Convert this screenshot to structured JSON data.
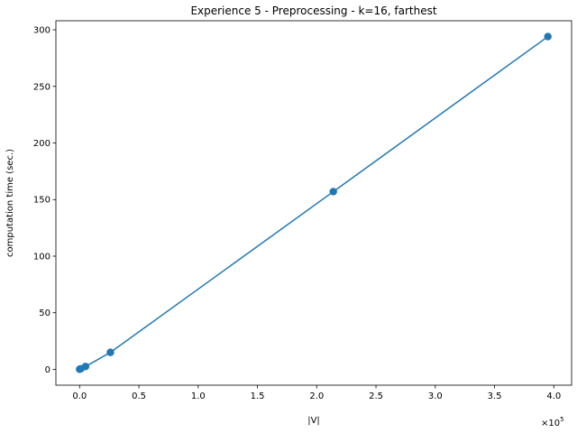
{
  "chart_data": {
    "type": "line",
    "title": "Experience 5 - Preprocessing - k=16, farthest",
    "xlabel": "|V|",
    "ylabel": "computation time (sec.)",
    "x_offset_label": "×10",
    "x_offset_exponent": "5",
    "xlim": [
      -0.2,
      4.15
    ],
    "ylim": [
      -14,
      308
    ],
    "x_ticks": [
      0.0,
      0.5,
      1.0,
      1.5,
      2.0,
      2.5,
      3.0,
      3.5,
      4.0
    ],
    "x_tick_labels": [
      "0.0",
      "0.5",
      "1.0",
      "1.5",
      "2.0",
      "2.5",
      "3.0",
      "3.5",
      "4.0"
    ],
    "y_ticks": [
      0,
      50,
      100,
      150,
      200,
      250,
      300
    ],
    "y_tick_labels": [
      "0",
      "50",
      "100",
      "150",
      "200",
      "250",
      "300"
    ],
    "grid": false,
    "legend": "none",
    "series": [
      {
        "color": "#1f77b4",
        "marker": "circle",
        "x": [
          0.0,
          0.01,
          0.05,
          0.26,
          2.14,
          3.95
        ],
        "y": [
          0.1,
          0.5,
          2.5,
          15,
          157,
          294
        ]
      }
    ]
  }
}
